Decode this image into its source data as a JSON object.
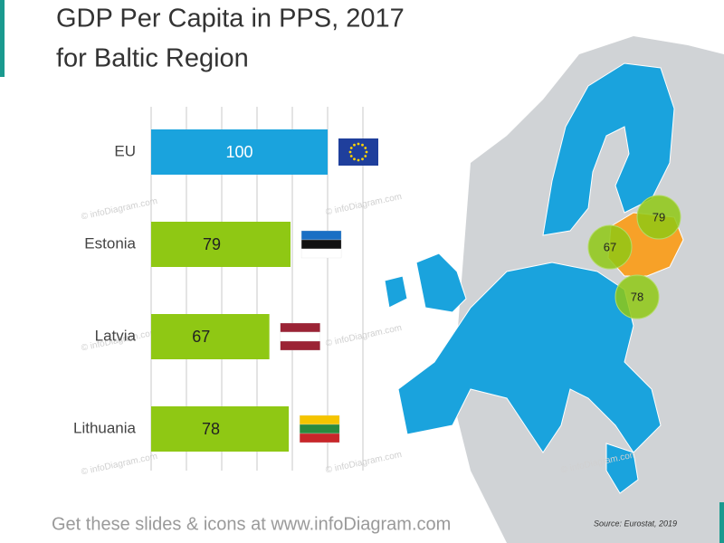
{
  "chart_data": {
    "type": "hbar",
    "title": "GDP Per Capita in PPS, 2017",
    "subtitle": "for Baltic Region",
    "categories": [
      "EU",
      "Estonia",
      "Latvia",
      "Lithuania"
    ],
    "values": [
      100,
      79,
      67,
      78
    ],
    "colors": [
      "#1aa3dd",
      "#8fc814",
      "#8fc814",
      "#8fc814"
    ],
    "xlim": [
      0,
      120
    ],
    "xticks": [
      0,
      20,
      40,
      60,
      80,
      100,
      120
    ],
    "grid": true,
    "map_bubbles": {
      "Estonia": "#8fc814",
      "Latvia": "#8fc814",
      "Lithuania": "#8fc814"
    },
    "watermark": "© infoDiagram.com",
    "footer": "Get these slides & icons at www.infoDiagram.com",
    "source": "Source: Eurostat, 2019"
  }
}
